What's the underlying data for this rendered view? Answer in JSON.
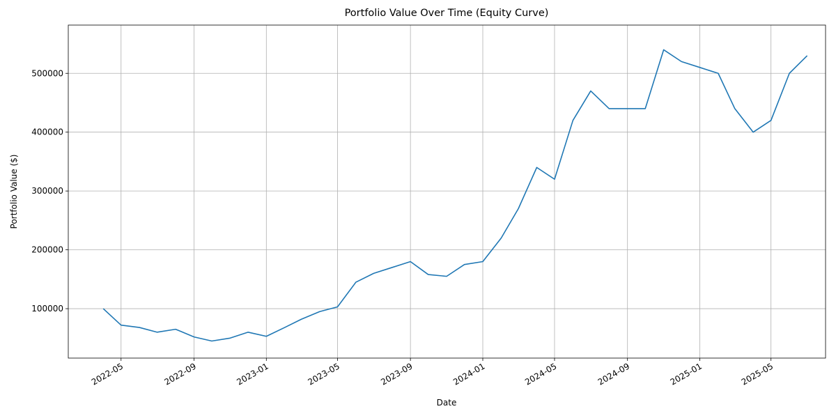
{
  "chart_data": {
    "type": "line",
    "title": "Portfolio Value Over Time (Equity Curve)",
    "xlabel": "Date",
    "ylabel": "Portfolio Value ($)",
    "x": [
      "2022-04",
      "2022-05",
      "2022-06",
      "2022-07",
      "2022-08",
      "2022-09",
      "2022-10",
      "2022-11",
      "2022-12",
      "2023-01",
      "2023-02",
      "2023-03",
      "2023-04",
      "2023-05",
      "2023-06",
      "2023-07",
      "2023-08",
      "2023-09",
      "2023-10",
      "2023-11",
      "2023-12",
      "2024-01",
      "2024-02",
      "2024-03",
      "2024-04",
      "2024-05",
      "2024-06",
      "2024-07",
      "2024-08",
      "2024-09",
      "2024-10",
      "2024-11",
      "2024-12",
      "2025-01",
      "2025-02",
      "2025-03",
      "2025-04",
      "2025-05",
      "2025-06",
      "2025-07"
    ],
    "series": [
      {
        "name": "Portfolio Value",
        "color": "#1f77b4",
        "values": [
          100000,
          72000,
          68000,
          60000,
          65000,
          52000,
          45000,
          50000,
          60000,
          53000,
          68000,
          82000,
          95000,
          103000,
          145000,
          160000,
          170000,
          180000,
          158000,
          155000,
          175000,
          180000,
          220000,
          270000,
          340000,
          320000,
          420000,
          470000,
          440000,
          440000,
          440000,
          540000,
          520000,
          510000,
          500000,
          440000,
          400000,
          420000,
          500000,
          530000
        ]
      }
    ],
    "xlim": [
      "2022-02",
      "2025-08"
    ],
    "xticks": [
      "2022-05",
      "2022-09",
      "2023-01",
      "2023-05",
      "2023-09",
      "2024-01",
      "2024-05",
      "2024-09",
      "2025-01",
      "2025-05"
    ],
    "ylim": [
      16000,
      582000
    ],
    "yticks": [
      100000,
      200000,
      300000,
      400000,
      500000
    ],
    "grid": true
  }
}
